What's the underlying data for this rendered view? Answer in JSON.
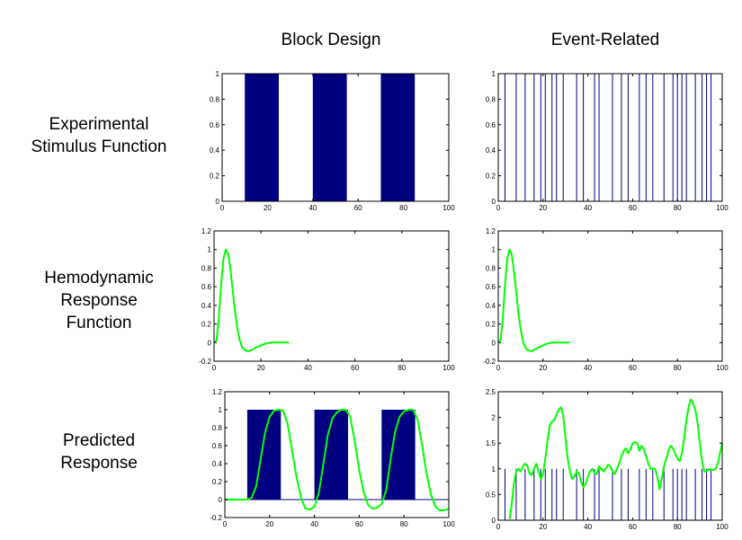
{
  "headers": {
    "block": "Block Design",
    "event": "Event-Related"
  },
  "rows": {
    "stimulus": [
      "Experimental",
      "Stimulus Function"
    ],
    "hrf": [
      "Hemodynamic",
      "Response",
      "Function"
    ],
    "predicted": [
      "Predicted",
      "Response"
    ]
  },
  "colors": {
    "bar": "#000080",
    "curve": "#00ff00",
    "axis": "#000000",
    "baseline": "#000080"
  },
  "chart_data": [
    {
      "id": "block-stimulus",
      "type": "bar",
      "xlim": [
        0,
        100
      ],
      "ylim": [
        0,
        1
      ],
      "xticks": [
        0,
        20,
        40,
        60,
        80,
        100
      ],
      "yticks": [
        0,
        0.2,
        0.4,
        0.6,
        0.8,
        1
      ],
      "blocks": [
        [
          10,
          25
        ],
        [
          40,
          55
        ],
        [
          70,
          85
        ]
      ],
      "block_height": 1
    },
    {
      "id": "event-stimulus",
      "type": "bar",
      "xlim": [
        0,
        100
      ],
      "ylim": [
        0,
        1
      ],
      "xticks": [
        0,
        20,
        40,
        60,
        80,
        100
      ],
      "yticks": [
        0,
        0.2,
        0.4,
        0.6,
        0.8,
        1
      ],
      "events": [
        3,
        8,
        12,
        16,
        19,
        21,
        24,
        26,
        29,
        35,
        38,
        43,
        45,
        51,
        55,
        58,
        63,
        66,
        69,
        74,
        78,
        80,
        82,
        84,
        88,
        91,
        93,
        95
      ],
      "event_height": 1
    },
    {
      "id": "block-hrf",
      "type": "line",
      "xlim": [
        0,
        100
      ],
      "ylim": [
        -0.2,
        1.2
      ],
      "xticks": [
        0,
        20,
        40,
        60,
        80,
        100
      ],
      "yticks": [
        -0.2,
        0,
        0.2,
        0.4,
        0.6,
        0.8,
        1,
        1.2
      ],
      "x": [
        0,
        1,
        2,
        3,
        4,
        5,
        6,
        7,
        8,
        9,
        10,
        11,
        12,
        13,
        14,
        15,
        16,
        18,
        20,
        22,
        24,
        26,
        28,
        30,
        32
      ],
      "y": [
        0,
        0.02,
        0.25,
        0.62,
        0.9,
        1.0,
        0.95,
        0.78,
        0.55,
        0.32,
        0.14,
        0.02,
        -0.05,
        -0.08,
        -0.09,
        -0.09,
        -0.08,
        -0.05,
        -0.03,
        -0.01,
        0.0,
        0.0,
        0.0,
        0.0,
        0.0
      ]
    },
    {
      "id": "event-hrf",
      "type": "line",
      "xlim": [
        0,
        100
      ],
      "ylim": [
        -0.2,
        1.2
      ],
      "xticks": [
        0,
        20,
        40,
        60,
        80,
        100
      ],
      "yticks": [
        -0.2,
        0,
        0.2,
        0.4,
        0.6,
        0.8,
        1,
        1.2
      ],
      "x": [
        0,
        1,
        2,
        3,
        4,
        5,
        6,
        7,
        8,
        9,
        10,
        11,
        12,
        13,
        14,
        15,
        16,
        18,
        20,
        22,
        24,
        26,
        28,
        30,
        32
      ],
      "y": [
        0,
        0.02,
        0.25,
        0.62,
        0.9,
        1.0,
        0.95,
        0.78,
        0.55,
        0.32,
        0.14,
        0.02,
        -0.05,
        -0.08,
        -0.09,
        -0.09,
        -0.08,
        -0.05,
        -0.03,
        -0.01,
        0.0,
        0.0,
        0.0,
        0.0,
        0.0
      ]
    },
    {
      "id": "block-predicted",
      "type": "line",
      "xlim": [
        0,
        100
      ],
      "ylim": [
        -0.2,
        1.2
      ],
      "xticks": [
        0,
        20,
        40,
        60,
        80,
        100
      ],
      "yticks": [
        -0.2,
        0,
        0.2,
        0.4,
        0.6,
        0.8,
        1,
        1.2
      ],
      "blocks": [
        [
          10,
          25
        ],
        [
          40,
          55
        ],
        [
          70,
          85
        ]
      ],
      "block_height": 1,
      "x": [
        0,
        10,
        12,
        14,
        16,
        18,
        20,
        22,
        24,
        26,
        28,
        30,
        32,
        34,
        36,
        38,
        40,
        42,
        44,
        46,
        48,
        50,
        52,
        54,
        56,
        58,
        60,
        62,
        64,
        66,
        68,
        70,
        72,
        74,
        76,
        78,
        80,
        82,
        84,
        86,
        88,
        90,
        92,
        94,
        96,
        98,
        100
      ],
      "y": [
        0,
        0,
        0.02,
        0.15,
        0.45,
        0.75,
        0.92,
        0.99,
        1.0,
        0.99,
        0.85,
        0.55,
        0.25,
        0.02,
        -0.1,
        -0.11,
        -0.08,
        0.08,
        0.4,
        0.72,
        0.9,
        0.97,
        1.0,
        1.0,
        0.92,
        0.65,
        0.33,
        0.08,
        -0.06,
        -0.1,
        -0.09,
        -0.05,
        0.1,
        0.45,
        0.75,
        0.92,
        0.98,
        1.0,
        1.0,
        0.9,
        0.62,
        0.3,
        0.06,
        -0.08,
        -0.12,
        -0.12,
        -0.1
      ]
    },
    {
      "id": "event-predicted",
      "type": "line",
      "xlim": [
        0,
        100
      ],
      "ylim": [
        0,
        2.5
      ],
      "xticks": [
        0,
        20,
        40,
        60,
        80,
        100
      ],
      "yticks": [
        0,
        0.5,
        1,
        1.5,
        2,
        2.5
      ],
      "events": [
        3,
        8,
        12,
        16,
        19,
        21,
        24,
        26,
        29,
        35,
        38,
        43,
        45,
        51,
        55,
        58,
        63,
        66,
        69,
        74,
        78,
        80,
        82,
        84,
        88,
        91,
        93,
        95
      ],
      "event_height": 1,
      "x": [
        5,
        6,
        7,
        8,
        9,
        10,
        11,
        12,
        13,
        14,
        15,
        16,
        17,
        18,
        19,
        20,
        21,
        22,
        23,
        24,
        25,
        26,
        27,
        28,
        29,
        30,
        31,
        32,
        33,
        34,
        35,
        36,
        37,
        38,
        39,
        40,
        41,
        42,
        43,
        44,
        45,
        46,
        47,
        48,
        49,
        50,
        51,
        52,
        53,
        54,
        55,
        56,
        57,
        58,
        59,
        60,
        61,
        62,
        63,
        64,
        65,
        66,
        67,
        68,
        69,
        70,
        71,
        72,
        73,
        74,
        75,
        76,
        77,
        78,
        79,
        80,
        81,
        82,
        83,
        84,
        85,
        86,
        87,
        88,
        89,
        90,
        91,
        92,
        93,
        94,
        95,
        96,
        97,
        98,
        99,
        100
      ],
      "y": [
        0.02,
        0.3,
        0.72,
        0.95,
        1.0,
        0.95,
        1.05,
        1.1,
        1.05,
        0.9,
        0.88,
        1.0,
        1.1,
        0.95,
        0.8,
        0.9,
        1.2,
        1.55,
        1.85,
        1.92,
        1.95,
        2.05,
        2.15,
        2.2,
        2.05,
        1.6,
        1.2,
        0.95,
        0.8,
        0.85,
        0.95,
        0.92,
        0.75,
        0.65,
        0.7,
        0.85,
        0.95,
        1.0,
        0.92,
        0.9,
        1.05,
        1.0,
        0.95,
        1.0,
        1.08,
        1.05,
        0.95,
        0.9,
        1.0,
        1.1,
        1.25,
        1.35,
        1.4,
        1.3,
        1.38,
        1.5,
        1.52,
        1.5,
        1.35,
        1.45,
        1.38,
        1.25,
        1.1,
        1.0,
        1.0,
        1.0,
        0.85,
        0.6,
        0.8,
        1.05,
        1.2,
        1.35,
        1.45,
        1.4,
        1.3,
        1.2,
        1.15,
        1.3,
        1.6,
        1.95,
        2.2,
        2.35,
        2.28,
        2.15,
        1.9,
        1.5,
        1.15,
        0.95,
        0.95,
        1.0,
        0.97,
        0.98,
        1.0,
        1.1,
        1.3,
        1.5
      ]
    }
  ]
}
